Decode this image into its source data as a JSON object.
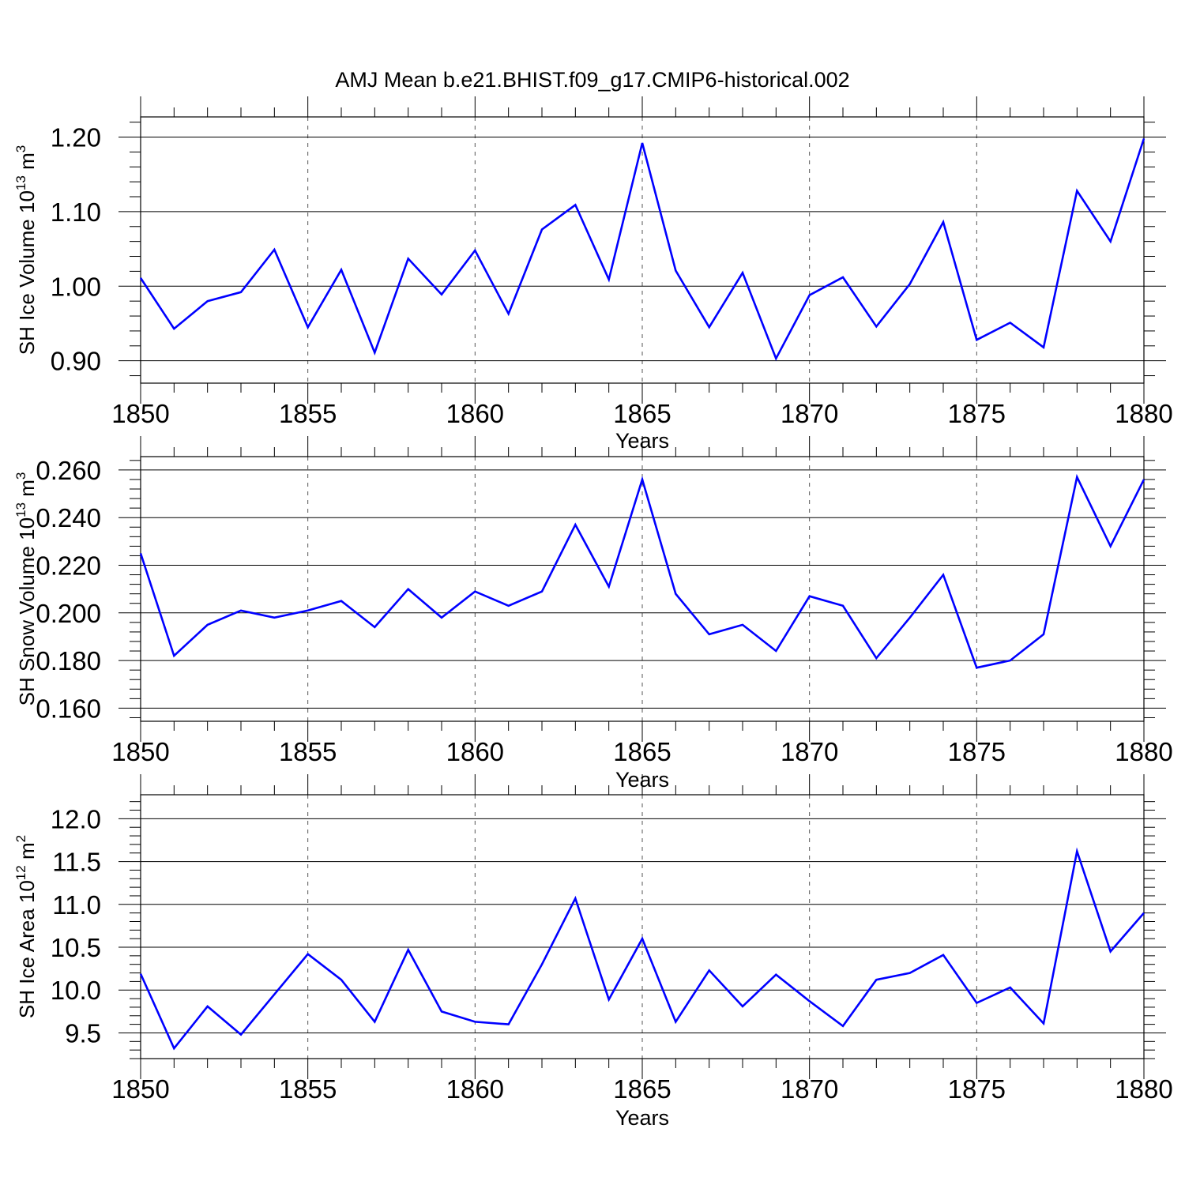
{
  "title": "AMJ Mean b.e21.BHIST.f09_g17.CMIP6-historical.002",
  "chart_data": [
    {
      "type": "line",
      "name": "ice-volume",
      "title": "AMJ Mean b.e21.BHIST.f09_g17.CMIP6-historical.002",
      "xlabel": "Years",
      "ylabel": {
        "main": "SH Ice Volume 10",
        "exp": "13",
        "unit": " m",
        "unit_exp": "3"
      },
      "xlim": [
        1850,
        1880
      ],
      "ylim": [
        0.87,
        1.227
      ],
      "yticks": [
        "0.90",
        "1.00",
        "1.10",
        "1.20"
      ],
      "xticks": [
        "1850",
        "1855",
        "1860",
        "1865",
        "1870",
        "1875",
        "1880"
      ],
      "line_color": "#0000ff",
      "grid": "vertical dashed at major x ticks",
      "x": [
        1850,
        1851,
        1852,
        1853,
        1854,
        1855,
        1856,
        1857,
        1858,
        1859,
        1860,
        1861,
        1862,
        1863,
        1864,
        1865,
        1866,
        1867,
        1868,
        1869,
        1870,
        1871,
        1872,
        1873,
        1874,
        1875,
        1876,
        1877,
        1878,
        1879,
        1880
      ],
      "values": [
        1.011,
        0.943,
        0.98,
        0.992,
        1.049,
        0.945,
        1.022,
        0.911,
        1.037,
        0.989,
        1.048,
        0.963,
        1.076,
        1.109,
        1.009,
        1.192,
        1.021,
        0.945,
        1.018,
        0.903,
        0.988,
        1.012,
        0.946,
        1.003,
        1.086,
        0.928,
        0.951,
        0.918,
        1.128,
        1.06,
        1.198
      ]
    },
    {
      "type": "line",
      "name": "snow-volume",
      "xlabel": "Years",
      "ylabel": {
        "main": "SH Snow Volume 10",
        "exp": "13",
        "unit": " m",
        "unit_exp": "3"
      },
      "xlim": [
        1850,
        1880
      ],
      "ylim": [
        0.1545,
        0.2656
      ],
      "yticks": [
        "0.160",
        "0.180",
        "0.200",
        "0.220",
        "0.240",
        "0.260"
      ],
      "xticks": [
        "1850",
        "1855",
        "1860",
        "1865",
        "1870",
        "1875",
        "1880"
      ],
      "line_color": "#0000ff",
      "grid": "vertical dashed at major x ticks",
      "x": [
        1850,
        1851,
        1852,
        1853,
        1854,
        1855,
        1856,
        1857,
        1858,
        1859,
        1860,
        1861,
        1862,
        1863,
        1864,
        1865,
        1866,
        1867,
        1868,
        1869,
        1870,
        1871,
        1872,
        1873,
        1874,
        1875,
        1876,
        1877,
        1878,
        1879,
        1880
      ],
      "values": [
        0.225,
        0.182,
        0.195,
        0.201,
        0.198,
        0.201,
        0.205,
        0.194,
        0.21,
        0.198,
        0.209,
        0.203,
        0.209,
        0.237,
        0.211,
        0.256,
        0.208,
        0.191,
        0.195,
        0.184,
        0.207,
        0.203,
        0.181,
        0.198,
        0.216,
        0.177,
        0.18,
        0.191,
        0.257,
        0.228,
        0.256
      ]
    },
    {
      "type": "line",
      "name": "ice-area",
      "xlabel": "Years",
      "ylabel": {
        "main": "SH Ice Area 10",
        "exp": "12",
        "unit": " m",
        "unit_exp": "2"
      },
      "xlim": [
        1850,
        1880
      ],
      "ylim": [
        9.2,
        12.28
      ],
      "yticks": [
        "9.5",
        "10.0",
        "10.5",
        "11.0",
        "11.5",
        "12.0"
      ],
      "xticks": [
        "1850",
        "1855",
        "1860",
        "1865",
        "1870",
        "1875",
        "1880"
      ],
      "line_color": "#0000ff",
      "grid": "vertical dashed at major x ticks",
      "x": [
        1850,
        1851,
        1852,
        1853,
        1854,
        1855,
        1856,
        1857,
        1858,
        1859,
        1860,
        1861,
        1862,
        1863,
        1864,
        1865,
        1866,
        1867,
        1868,
        1869,
        1870,
        1871,
        1872,
        1873,
        1874,
        1875,
        1876,
        1877,
        1878,
        1879,
        1880
      ],
      "values": [
        10.19,
        9.32,
        9.81,
        9.48,
        9.95,
        10.42,
        10.12,
        9.63,
        10.47,
        9.75,
        9.63,
        9.6,
        10.3,
        11.07,
        9.89,
        10.6,
        9.63,
        10.23,
        9.81,
        10.18,
        9.87,
        9.58,
        10.12,
        10.2,
        10.41,
        9.85,
        10.03,
        9.61,
        11.62,
        10.45,
        10.9
      ]
    }
  ]
}
